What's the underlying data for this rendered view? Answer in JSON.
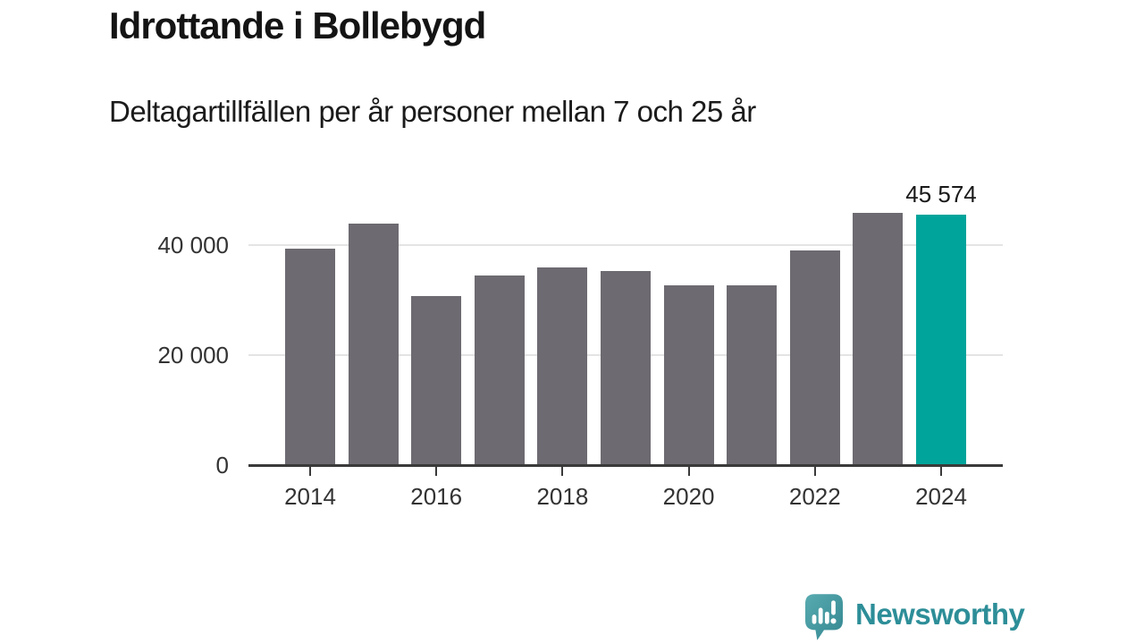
{
  "header": {
    "title": "Idrottande i Bollebygd",
    "subtitle": "Deltagartillfällen per år personer mellan 7 och 25 år"
  },
  "chart_data": {
    "type": "bar",
    "title": "Idrottande i Bollebygd",
    "subtitle": "Deltagartillfällen per år personer mellan 7 och 25 år",
    "categories": [
      "2014",
      "2015",
      "2016",
      "2017",
      "2018",
      "2019",
      "2020",
      "2021",
      "2022",
      "2023",
      "2024"
    ],
    "values": [
      39400,
      43800,
      30700,
      34500,
      35900,
      35200,
      32700,
      32600,
      39000,
      45900,
      45574
    ],
    "highlight_category": "2024",
    "highlight_value": 45574,
    "highlight_value_label": "45 574",
    "xlabel": "",
    "ylabel": "",
    "ylim": [
      0,
      52000
    ],
    "y_ticks": [
      {
        "value": 0,
        "label": "0"
      },
      {
        "value": 20000,
        "label": "20 000"
      },
      {
        "value": 40000,
        "label": "40 000"
      }
    ],
    "x_tick_labels": [
      "2014",
      "2016",
      "2018",
      "2020",
      "2022",
      "2024"
    ],
    "grid": "horizontal",
    "legend": "none",
    "bar_color": "#6d6a71",
    "highlight_color": "#00a49b"
  },
  "footer": {
    "brand": "Newsworthy"
  },
  "colors": {
    "background": "#ffffff",
    "title_text": "#141414",
    "axis_text": "#333333",
    "axis_line": "#3a3a3a",
    "gridline": "#e4e4e4",
    "bar_default": "#6d6a71",
    "bar_highlight": "#00a49b",
    "logo_text": "#2d8e98",
    "logo_bubble_light": "#58abb0",
    "logo_bubble_dark": "#348791"
  }
}
